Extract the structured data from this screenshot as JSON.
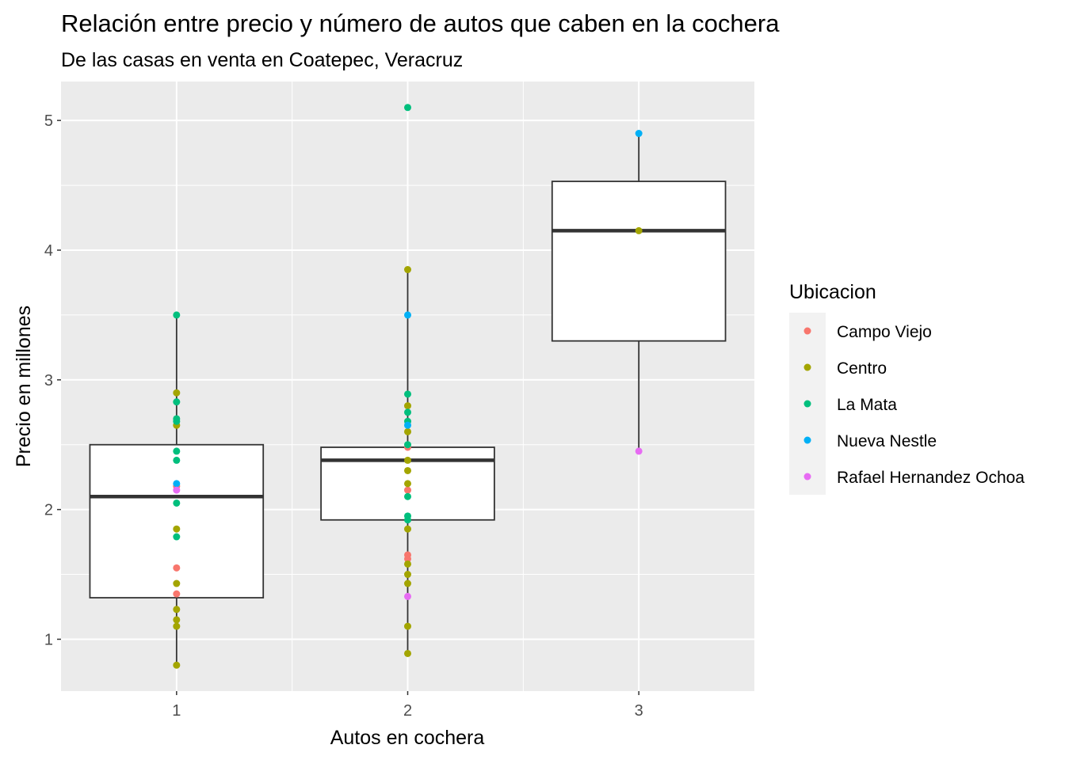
{
  "chart_data": {
    "type": "boxplot",
    "title": "Relación entre precio y número de autos que caben en la cochera",
    "subtitle": "De las casas en venta en Coatepec, Veracruz",
    "xlabel": "Autos en cochera",
    "ylabel": "Precio en millones",
    "categories": [
      "1",
      "2",
      "3"
    ],
    "xlim": [
      0.5,
      3.5
    ],
    "ylim": [
      0.6,
      5.3
    ],
    "y_ticks": [
      1,
      2,
      3,
      4,
      5
    ],
    "grid": true,
    "legend": {
      "title": "Ubicacion",
      "position": "right"
    },
    "colors": {
      "Campo Viejo": "#F8766D",
      "Centro": "#A3A500",
      "La Mata": "#00BF7D",
      "Nueva Nestle": "#00B0F6",
      "Rafael Hernandez Ochoa": "#E76BF3"
    },
    "boxes": [
      {
        "x": 1,
        "whisker_low": 0.8,
        "q1": 1.32,
        "median": 2.1,
        "q3": 2.5,
        "whisker_high": 3.5
      },
      {
        "x": 2,
        "whisker_low": 0.89,
        "q1": 1.92,
        "median": 2.38,
        "q3": 2.48,
        "whisker_high": 3.85,
        "outliers": [
          5.1
        ]
      },
      {
        "x": 3,
        "whisker_low": 2.45,
        "q1": 3.3,
        "median": 4.15,
        "q3": 4.53,
        "whisker_high": 4.9
      }
    ],
    "series": [
      {
        "name": "Campo Viejo",
        "points": [
          {
            "x": 1,
            "y": 1.55
          },
          {
            "x": 1,
            "y": 1.35
          },
          {
            "x": 1,
            "y": 2.18
          },
          {
            "x": 2,
            "y": 2.48
          },
          {
            "x": 2,
            "y": 2.15
          },
          {
            "x": 2,
            "y": 1.65
          },
          {
            "x": 2,
            "y": 1.62
          }
        ]
      },
      {
        "name": "Centro",
        "points": [
          {
            "x": 1,
            "y": 0.8
          },
          {
            "x": 1,
            "y": 1.1
          },
          {
            "x": 1,
            "y": 1.15
          },
          {
            "x": 1,
            "y": 1.23
          },
          {
            "x": 1,
            "y": 1.43
          },
          {
            "x": 1,
            "y": 1.85
          },
          {
            "x": 1,
            "y": 2.65
          },
          {
            "x": 1,
            "y": 2.9
          },
          {
            "x": 2,
            "y": 0.89
          },
          {
            "x": 2,
            "y": 1.1
          },
          {
            "x": 2,
            "y": 1.43
          },
          {
            "x": 2,
            "y": 1.5
          },
          {
            "x": 2,
            "y": 1.58
          },
          {
            "x": 2,
            "y": 1.85
          },
          {
            "x": 2,
            "y": 2.2
          },
          {
            "x": 2,
            "y": 2.3
          },
          {
            "x": 2,
            "y": 2.38
          },
          {
            "x": 2,
            "y": 2.6
          },
          {
            "x": 2,
            "y": 2.8
          },
          {
            "x": 2,
            "y": 3.85
          },
          {
            "x": 3,
            "y": 4.15
          }
        ]
      },
      {
        "name": "La Mata",
        "points": [
          {
            "x": 1,
            "y": 1.79
          },
          {
            "x": 1,
            "y": 2.05
          },
          {
            "x": 1,
            "y": 2.38
          },
          {
            "x": 1,
            "y": 2.45
          },
          {
            "x": 1,
            "y": 2.68
          },
          {
            "x": 1,
            "y": 2.7
          },
          {
            "x": 1,
            "y": 2.83
          },
          {
            "x": 1,
            "y": 3.5
          },
          {
            "x": 2,
            "y": 1.92
          },
          {
            "x": 2,
            "y": 1.95
          },
          {
            "x": 2,
            "y": 2.1
          },
          {
            "x": 2,
            "y": 2.5
          },
          {
            "x": 2,
            "y": 2.68
          },
          {
            "x": 2,
            "y": 2.75
          },
          {
            "x": 2,
            "y": 2.89
          },
          {
            "x": 2,
            "y": 5.1
          }
        ]
      },
      {
        "name": "Nueva Nestle",
        "points": [
          {
            "x": 1,
            "y": 2.2
          },
          {
            "x": 2,
            "y": 2.65
          },
          {
            "x": 2,
            "y": 3.5
          },
          {
            "x": 3,
            "y": 4.9
          }
        ]
      },
      {
        "name": "Rafael Hernandez Ochoa",
        "points": [
          {
            "x": 1,
            "y": 2.15
          },
          {
            "x": 2,
            "y": 1.33
          },
          {
            "x": 3,
            "y": 2.45
          }
        ]
      }
    ]
  }
}
